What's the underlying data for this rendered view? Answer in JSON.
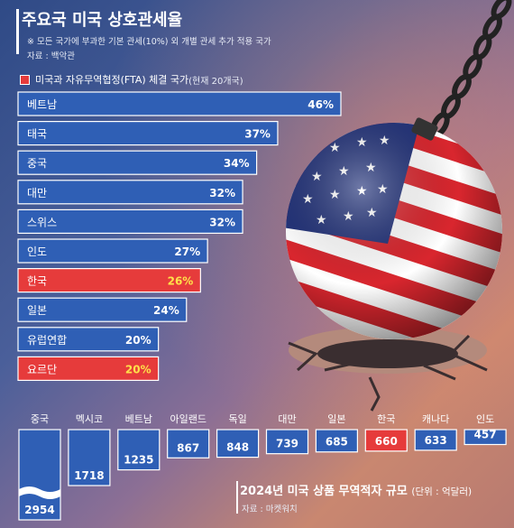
{
  "header": {
    "title": "주요국 미국 상호관세율",
    "note": "※ 모든 국가에 부과한 기본 관세(10%) 외 개별 관세 추가 적용 국가",
    "source": "자료 : 백악관",
    "legend_label": "미국과 자유무역협정(FTA) 체결 국가",
    "legend_sub": "(현재 20개국)"
  },
  "footer": {
    "title": "2024년 미국 상품 무역적자 규모",
    "unit": "(단위 : 억달러)",
    "source": "자료 : 마켓워치"
  },
  "colors": {
    "bar": "#2f5fb5",
    "fta": "#e63b3b",
    "fta_text": "#ffe14a"
  },
  "chart_data": [
    {
      "type": "bar",
      "orientation": "horizontal",
      "title": "주요국 미국 상호관세율",
      "categories": [
        "베트남",
        "태국",
        "중국",
        "대만",
        "스위스",
        "인도",
        "한국",
        "일본",
        "유럽연합",
        "요르단"
      ],
      "values": [
        46,
        37,
        34,
        32,
        32,
        27,
        26,
        24,
        20,
        20
      ],
      "labels": [
        "46%",
        "37%",
        "34%",
        "32%",
        "32%",
        "27%",
        "26%",
        "24%",
        "20%",
        "20%"
      ],
      "highlight": [
        "한국",
        "요르단"
      ]
    },
    {
      "type": "bar",
      "orientation": "vertical",
      "title": "2024년 미국 상품 무역적자 규모",
      "categories": [
        "중국",
        "멕시코",
        "베트남",
        "아일랜드",
        "독일",
        "대만",
        "일본",
        "한국",
        "캐나다",
        "인도"
      ],
      "values": [
        2954,
        1718,
        1235,
        867,
        848,
        739,
        685,
        660,
        633,
        457
      ],
      "highlight": [
        "한국"
      ],
      "axis_break": "중국"
    }
  ]
}
